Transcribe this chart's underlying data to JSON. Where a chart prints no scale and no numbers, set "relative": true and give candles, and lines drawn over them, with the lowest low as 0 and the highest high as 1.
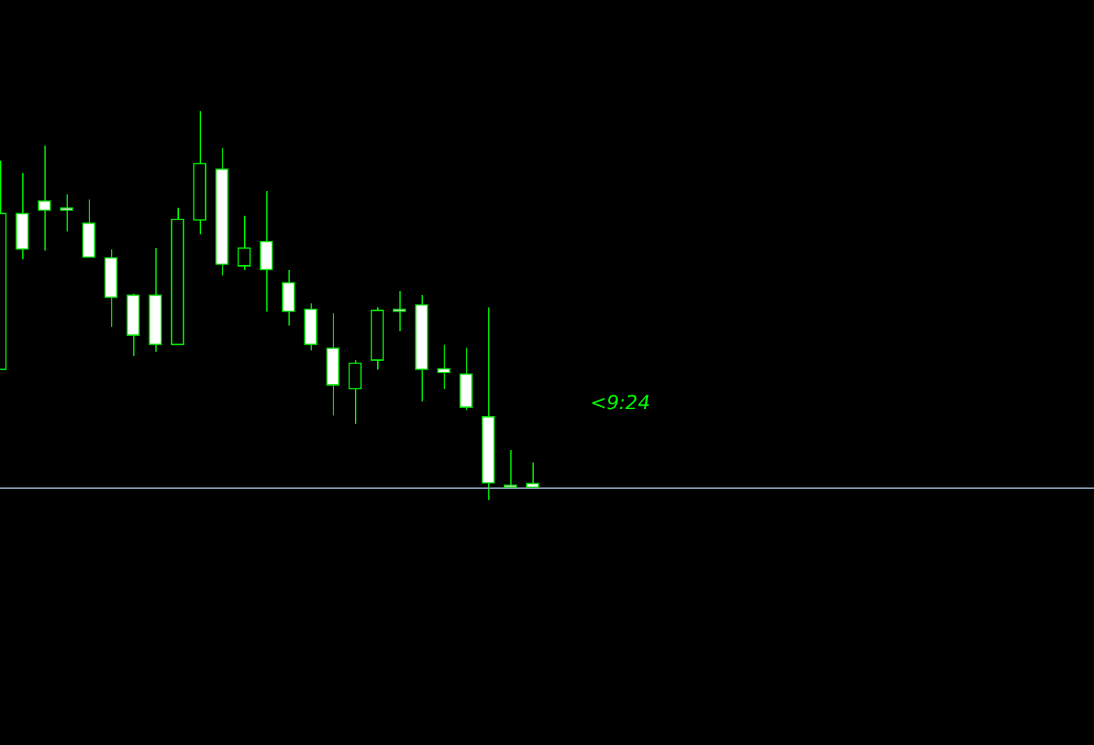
{
  "chart_data": {
    "type": "candlestick",
    "relative": true,
    "colors": [
      "#00ff00",
      "#00e000",
      "#00e000",
      "#00e000",
      "#00e000",
      "#00e000",
      "#00e000",
      "#00e000",
      "#00ff00",
      "#00ff00",
      "#00e000",
      "#00ff00",
      "#00e000",
      "#00e000",
      "#00e000",
      "#00e000",
      "#00ff00",
      "#00ff00",
      "#00e000",
      "#00e000",
      "#00e000",
      "#00e000",
      "#00e000",
      "#00e000",
      "#00e000"
    ],
    "categories": [
      null,
      null,
      null,
      null,
      null,
      null,
      null,
      null,
      null,
      null,
      null,
      null,
      null,
      null,
      null,
      null,
      null,
      null,
      null,
      null,
      null,
      null,
      null,
      null,
      null
    ],
    "ohlc": [
      [
        0.335,
        0.872,
        0.335,
        0.737
      ],
      [
        0.737,
        0.84,
        0.619,
        0.644
      ],
      [
        0.769,
        0.911,
        0.641,
        0.744
      ],
      [
        0.751,
        0.786,
        0.69,
        0.744
      ],
      [
        0.712,
        0.772,
        0.623,
        0.623
      ],
      [
        0.623,
        0.644,
        0.445,
        0.52
      ],
      [
        0.527,
        0.53,
        0.37,
        0.423
      ],
      [
        0.527,
        0.648,
        0.381,
        0.399
      ],
      [
        0.399,
        0.751,
        0.399,
        0.722
      ],
      [
        0.719,
        1,
        0.683,
        0.865
      ],
      [
        0.851,
        0.904,
        0.577,
        0.605
      ],
      [
        0.601,
        0.73,
        0.591,
        0.648
      ],
      [
        0.665,
        0.794,
        0.484,
        0.591
      ],
      [
        0.559,
        0.591,
        0.448,
        0.484
      ],
      [
        0.491,
        0.505,
        0.384,
        0.399
      ],
      [
        0.391,
        0.48,
        0.217,
        0.295
      ],
      [
        0.285,
        0.359,
        0.196,
        0.352
      ],
      [
        0.359,
        0.495,
        0.335,
        0.488
      ],
      [
        0.491,
        0.537,
        0.434,
        0.491
      ],
      [
        0.502,
        0.527,
        0.253,
        0.335
      ],
      [
        0.338,
        0.399,
        0.285,
        0.327
      ],
      [
        0.324,
        0.391,
        0.231,
        0.238
      ],
      [
        0.214,
        0.495,
        0,
        0.043
      ],
      [
        0.039,
        0.128,
        0.032,
        0.039
      ],
      [
        0.043,
        0.096,
        0.032,
        0.032
      ]
    ],
    "ref_lines": [
      {
        "axis": "y",
        "value": 0.032,
        "color": "#8fa6bf"
      }
    ],
    "annotations": [
      "<9:24"
    ],
    "legend": false
  }
}
